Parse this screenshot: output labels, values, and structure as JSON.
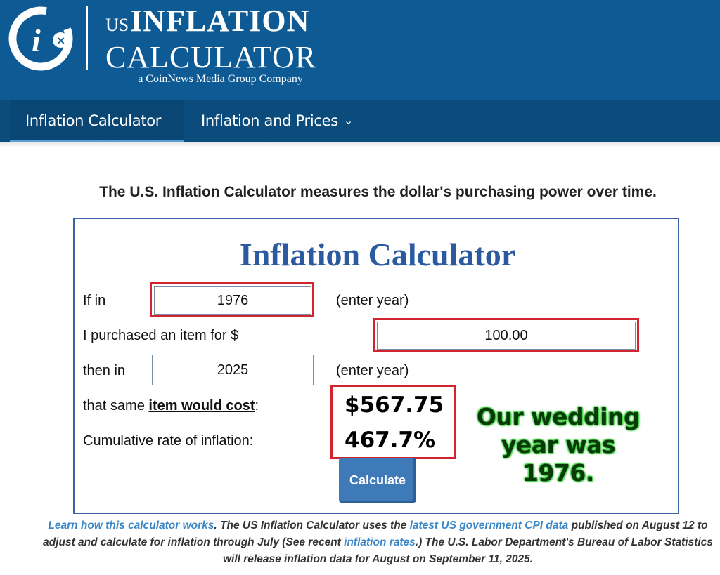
{
  "header": {
    "logo_prefix": "US",
    "logo_line1": "INFLATION",
    "logo_line2": "CALCULATOR",
    "tagline_bar": "|",
    "tagline": "a CoinNews Media Group Company",
    "logo_icon": "ci-x-logo-icon",
    "bg_color": "#0d5a94"
  },
  "nav": {
    "items": [
      {
        "label": "Inflation Calculator",
        "active": true
      },
      {
        "label": "Inflation and Prices",
        "has_dropdown": true
      }
    ],
    "dropdown_glyph": "⌄"
  },
  "intro": "The U.S. Inflation Calculator measures the dollar's purchasing power over time.",
  "calculator": {
    "title": "Inflation Calculator",
    "row1_label": "If in",
    "start_year": "1976",
    "row1_hint": "(enter year)",
    "row2_label": "I purchased an item for $",
    "amount": "100.00",
    "row3_label": "then in",
    "end_year": "2025",
    "row3_hint": "(enter year)",
    "row4_prefix": "that same ",
    "row4_bold": "item would cost",
    "row4_suffix": ":",
    "result_cost": "$567.75",
    "row5_label": "Cumulative rate of inflation:",
    "result_rate": "467.7%",
    "button": "Calculate",
    "accent_color": "#2c5aa0",
    "highlight_color": "#d0242f"
  },
  "annotation": {
    "line1": "Our wedding",
    "line2": "year was 1976."
  },
  "footer": {
    "link1": "Learn how this calculator works",
    "text1": ". The US Inflation Calculator uses the ",
    "link2": "latest US government CPI data",
    "text2": " published on August 12 to adjust and calculate for inflation through July (See recent ",
    "link3": "inflation rates",
    "text3": ".) The U.S. Labor Department's Bureau of Labor Statistics will release inflation data for August on September 11, 2025."
  }
}
